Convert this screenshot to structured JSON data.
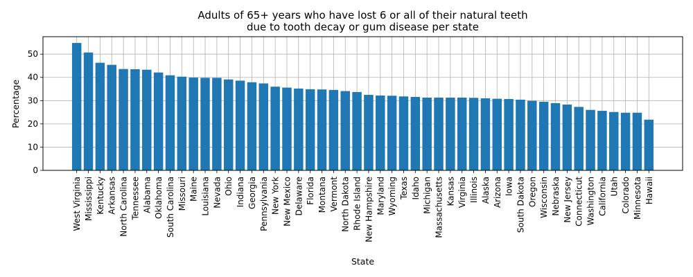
{
  "chart_data": {
    "type": "bar",
    "title": "Adults of 65+ years who have lost 6 or all of their natural teeth\ndue to tooth decay or gum disease per state",
    "xlabel": "State",
    "ylabel": "Percentage",
    "ylim": [
      0,
      57.5
    ],
    "yticks": [
      0,
      10,
      20,
      30,
      40,
      50
    ],
    "grid": true,
    "bar_color": "#1f77b4",
    "categories": [
      "West Virginia",
      "Mississippi",
      "Kentucky",
      "Arkansas",
      "North Carolina",
      "Tennessee",
      "Alabama",
      "Oklahoma",
      "South Carolina",
      "Missouri",
      "Maine",
      "Louisiana",
      "Nevada",
      "Ohio",
      "Indiana",
      "Georgia",
      "Pennsylvania",
      "New York",
      "New Mexico",
      "Delaware",
      "Florida",
      "Montana",
      "Vermont",
      "North Dakota",
      "Rhode Island",
      "New Hampshire",
      "Maryland",
      "Wyoming",
      "Texas",
      "Idaho",
      "Michigan",
      "Massachusetts",
      "Kansas",
      "Virginia",
      "Illinois",
      "Alaska",
      "Arizona",
      "Iowa",
      "South Dakota",
      "Oregon",
      "Wisconsin",
      "Nebraska",
      "New Jersey",
      "Connecticut",
      "Washington",
      "California",
      "Utah",
      "Colorado",
      "Minnesota",
      "Hawaii"
    ],
    "values": [
      54.8,
      50.7,
      46.3,
      45.4,
      43.6,
      43.5,
      43.3,
      42.1,
      40.9,
      40.3,
      39.9,
      39.8,
      39.8,
      39.1,
      38.6,
      37.9,
      37.4,
      36.0,
      35.6,
      35.2,
      34.9,
      34.8,
      34.6,
      34.1,
      33.7,
      32.5,
      32.2,
      32.1,
      31.8,
      31.6,
      31.3,
      31.3,
      31.3,
      31.3,
      31.2,
      31.0,
      30.8,
      30.7,
      30.4,
      29.9,
      29.5,
      28.9,
      28.3,
      27.3,
      26.0,
      25.6,
      25.1,
      24.8,
      24.8,
      21.8
    ]
  }
}
